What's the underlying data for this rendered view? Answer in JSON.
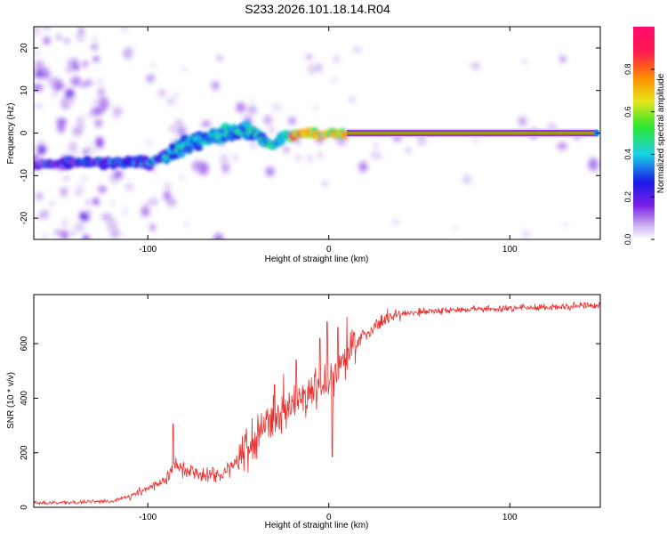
{
  "title": "S233.2026.101.18.14.R04",
  "colors": {
    "snr_line": "#e8312f",
    "axis": "#000000",
    "background": "#ffffff"
  },
  "chart_data": [
    {
      "type": "heatmap",
      "name": "spectrogram",
      "xlabel": "Height of straight line (km)",
      "ylabel": "Frequency (Hz)",
      "xlim": [
        -163,
        150
      ],
      "ylim": [
        -25,
        25
      ],
      "xticks": [
        -100,
        0,
        100
      ],
      "xtick_labels": [
        "-100",
        "0",
        "100"
      ],
      "yticks": [
        -20,
        -10,
        0,
        10,
        20
      ],
      "ytick_labels": [
        "-20",
        "-10",
        "0",
        "10",
        "20"
      ],
      "colorbar": {
        "label": "Normalized spectral amplitude",
        "range": [
          0,
          1
        ],
        "ticks": [
          0.0,
          0.2,
          0.4,
          0.6,
          0.8
        ],
        "tick_labels": [
          "0.0",
          "0.2",
          "0.4",
          "0.6",
          "0.8"
        ],
        "colormap": [
          "#ffffff",
          "#d2b8f2",
          "#7a1fe6",
          "#1a1ae6",
          "#19d2e6",
          "#2ee62e",
          "#e6e619",
          "#ff8c00",
          "#ff1a4d",
          "#ff0a6e"
        ]
      },
      "carrier_track": {
        "description_points_km_hz": [
          [
            -160,
            -7.5
          ],
          [
            -140,
            -7
          ],
          [
            -120,
            -7
          ],
          [
            -100,
            -7
          ],
          [
            -90,
            -5.5
          ],
          [
            -80,
            -3
          ],
          [
            -70,
            -2
          ],
          [
            -60,
            -0.5
          ],
          [
            -50,
            0.5
          ],
          [
            -40,
            0.5
          ],
          [
            -35,
            -2.5
          ],
          [
            -30,
            -2.5
          ],
          [
            -25,
            -0.5
          ],
          [
            -20,
            -0.5
          ],
          [
            -10,
            0.5
          ],
          [
            -5,
            -1
          ],
          [
            0,
            0
          ],
          [
            10,
            0
          ],
          [
            50,
            0
          ],
          [
            100,
            0
          ],
          [
            148,
            0
          ]
        ],
        "steady_from_km": 10
      }
    },
    {
      "type": "line",
      "name": "snr",
      "xlabel": "Height of straight line (km)",
      "ylabel": "SNR (10 * v/v)",
      "xlim": [
        -163,
        150
      ],
      "ylim": [
        0,
        780
      ],
      "xticks": [
        -100,
        0,
        100
      ],
      "xtick_labels": [
        "-100",
        "0",
        "100"
      ],
      "yticks": [
        0,
        200,
        400,
        600
      ],
      "ytick_labels": [
        "0",
        "200",
        "400",
        "600"
      ],
      "trend_points_km_snr": [
        [
          -163,
          15
        ],
        [
          -140,
          18
        ],
        [
          -120,
          22
        ],
        [
          -110,
          40
        ],
        [
          -100,
          70
        ],
        [
          -90,
          100
        ],
        [
          -85,
          160
        ],
        [
          -80,
          130
        ],
        [
          -70,
          120
        ],
        [
          -60,
          120
        ],
        [
          -50,
          170
        ],
        [
          -40,
          260
        ],
        [
          -30,
          330
        ],
        [
          -20,
          380
        ],
        [
          -10,
          430
        ],
        [
          0,
          470
        ],
        [
          10,
          560
        ],
        [
          20,
          640
        ],
        [
          30,
          690
        ],
        [
          40,
          710
        ],
        [
          60,
          720
        ],
        [
          100,
          730
        ],
        [
          150,
          740
        ]
      ],
      "spikes_km_snr": [
        [
          -86,
          305
        ],
        [
          -30,
          450
        ],
        [
          -25,
          490
        ],
        [
          -18,
          540
        ],
        [
          -5,
          620
        ],
        [
          -1,
          680
        ],
        [
          2,
          185
        ],
        [
          5,
          660
        ],
        [
          10,
          700
        ]
      ]
    }
  ]
}
